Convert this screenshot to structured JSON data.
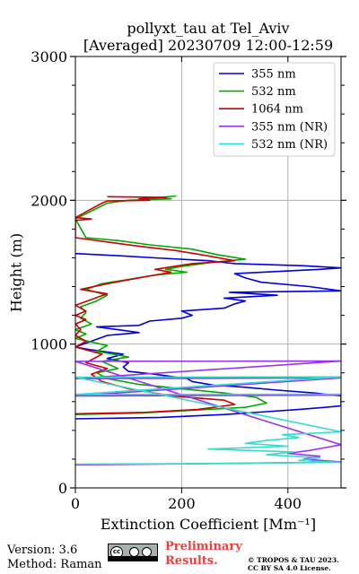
{
  "header": {
    "title_line1": "pollyxt_tau at Tel_Aviv",
    "title_line2": "[Averaged] 20230709 12:00-12:59"
  },
  "footer": {
    "version": "Version: 3.6",
    "method": "Method: Raman",
    "preliminary": "Preliminary Results.",
    "copyright_line1": "© TROPOS & TAU 2023.",
    "copyright_line2": "CC BY SA 4.0 License.",
    "license_icon": "cc-by-sa-icon"
  },
  "chart_data": {
    "type": "line",
    "xlabel": "Extinction Coefficient [Mm⁻¹]",
    "ylabel": "Height (m)",
    "xlim": [
      0,
      500
    ],
    "ylim": [
      0,
      3000
    ],
    "xticks": [
      "0",
      "200",
      "400"
    ],
    "yticks": [
      "0",
      "1000",
      "2000",
      "3000"
    ],
    "grid": true,
    "legend_position": "top-right",
    "series": [
      {
        "name": "355 nm",
        "color": "#0000dd",
        "points": [
          [
            0,
            480
          ],
          [
            160,
            490
          ],
          [
            280,
            510
          ],
          [
            360,
            530
          ],
          [
            420,
            545
          ],
          [
            470,
            560
          ],
          [
            500,
            570
          ],
          [
            500,
            640
          ],
          [
            450,
            660
          ],
          [
            380,
            680
          ],
          [
            320,
            700
          ],
          [
            260,
            715
          ],
          [
            220,
            740
          ],
          [
            210,
            760
          ],
          [
            150,
            790
          ],
          [
            100,
            810
          ],
          [
            90,
            840
          ],
          [
            100,
            870
          ],
          [
            60,
            900
          ],
          [
            90,
            930
          ],
          [
            30,
            960
          ],
          [
            0,
            980
          ],
          [
            60,
            1060
          ],
          [
            120,
            1080
          ],
          [
            80,
            1100
          ],
          [
            40,
            1120
          ],
          [
            120,
            1130
          ],
          [
            140,
            1160
          ],
          [
            200,
            1180
          ],
          [
            220,
            1200
          ],
          [
            200,
            1230
          ],
          [
            280,
            1250
          ],
          [
            300,
            1280
          ],
          [
            320,
            1300
          ],
          [
            280,
            1320
          ],
          [
            380,
            1340
          ],
          [
            290,
            1360
          ],
          [
            500,
            1370
          ],
          [
            440,
            1400
          ],
          [
            350,
            1430
          ],
          [
            320,
            1460
          ],
          [
            300,
            1490
          ],
          [
            460,
            1520
          ],
          [
            500,
            1530
          ],
          [
            430,
            1545
          ],
          [
            300,
            1560
          ],
          [
            250,
            1580
          ],
          [
            150,
            1600
          ],
          [
            80,
            1615
          ],
          [
            0,
            1630
          ]
        ]
      },
      {
        "name": "532 nm",
        "color": "#00aa00",
        "points": [
          [
            0,
            510
          ],
          [
            120,
            520
          ],
          [
            220,
            540
          ],
          [
            320,
            560
          ],
          [
            360,
            590
          ],
          [
            340,
            630
          ],
          [
            280,
            660
          ],
          [
            200,
            690
          ],
          [
            120,
            720
          ],
          [
            60,
            760
          ],
          [
            40,
            800
          ],
          [
            80,
            830
          ],
          [
            50,
            880
          ],
          [
            100,
            910
          ],
          [
            40,
            950
          ],
          [
            60,
            990
          ],
          [
            0,
            1040
          ],
          [
            20,
            1070
          ],
          [
            0,
            1100
          ],
          [
            30,
            1140
          ],
          [
            10,
            1180
          ],
          [
            20,
            1220
          ],
          [
            10,
            1260
          ],
          [
            40,
            1300
          ],
          [
            60,
            1340
          ],
          [
            20,
            1380
          ],
          [
            50,
            1420
          ],
          [
            100,
            1450
          ],
          [
            150,
            1480
          ],
          [
            210,
            1500
          ],
          [
            170,
            1520
          ],
          [
            200,
            1540
          ],
          [
            260,
            1570
          ],
          [
            320,
            1590
          ],
          [
            270,
            1620
          ],
          [
            220,
            1660
          ],
          [
            140,
            1690
          ],
          [
            80,
            1720
          ],
          [
            20,
            1740
          ],
          [
            0,
            1870
          ],
          [
            60,
            1980
          ],
          [
            100,
            2000
          ],
          [
            180,
            2010
          ],
          [
            160,
            2020
          ],
          [
            190,
            2030
          ]
        ]
      },
      {
        "name": "1064 nm",
        "color": "#cc0000",
        "points": [
          [
            0,
            515
          ],
          [
            130,
            525
          ],
          [
            230,
            545
          ],
          [
            300,
            580
          ],
          [
            280,
            610
          ],
          [
            180,
            640
          ],
          [
            100,
            690
          ],
          [
            50,
            740
          ],
          [
            30,
            790
          ],
          [
            60,
            830
          ],
          [
            20,
            870
          ],
          [
            50,
            930
          ],
          [
            0,
            980
          ],
          [
            20,
            1020
          ],
          [
            0,
            1060
          ],
          [
            10,
            1100
          ],
          [
            0,
            1140
          ],
          [
            20,
            1170
          ],
          [
            0,
            1200
          ],
          [
            20,
            1230
          ],
          [
            0,
            1270
          ],
          [
            30,
            1310
          ],
          [
            60,
            1350
          ],
          [
            10,
            1380
          ],
          [
            60,
            1420
          ],
          [
            120,
            1460
          ],
          [
            180,
            1500
          ],
          [
            150,
            1520
          ],
          [
            220,
            1560
          ],
          [
            300,
            1580
          ],
          [
            240,
            1620
          ],
          [
            190,
            1650
          ],
          [
            120,
            1680
          ],
          [
            60,
            1710
          ],
          [
            0,
            1740
          ],
          [
            0,
            1860
          ],
          [
            30,
            1870
          ],
          [
            0,
            1880
          ],
          [
            50,
            1980
          ],
          [
            60,
            1995
          ],
          [
            140,
            2000
          ],
          [
            120,
            2010
          ],
          [
            170,
            2020
          ],
          [
            60,
            2025
          ]
        ]
      },
      {
        "name": "355 nm (NR)",
        "color": "#9933ee",
        "points": [
          [
            0,
            160
          ],
          [
            150,
            165
          ],
          [
            300,
            170
          ],
          [
            500,
            180
          ],
          [
            430,
            200
          ],
          [
            460,
            220
          ],
          [
            400,
            240
          ],
          [
            440,
            260
          ],
          [
            470,
            280
          ],
          [
            500,
            300
          ],
          [
            0,
            880
          ],
          [
            500,
            882
          ],
          [
            0,
            760
          ],
          [
            500,
            765
          ],
          [
            0,
            640
          ],
          [
            500,
            645
          ]
        ]
      },
      {
        "name": "532 nm (NR)",
        "color": "#33ddcc",
        "points": [
          [
            0,
            165
          ],
          [
            200,
            168
          ],
          [
            400,
            175
          ],
          [
            500,
            178
          ],
          [
            420,
            190
          ],
          [
            460,
            210
          ],
          [
            360,
            230
          ],
          [
            410,
            250
          ],
          [
            250,
            270
          ],
          [
            400,
            290
          ],
          [
            320,
            310
          ],
          [
            360,
            330
          ],
          [
            420,
            350
          ],
          [
            390,
            370
          ],
          [
            500,
            390
          ],
          [
            0,
            770
          ],
          [
            500,
            772
          ],
          [
            0,
            650
          ],
          [
            500,
            652
          ]
        ]
      }
    ]
  }
}
